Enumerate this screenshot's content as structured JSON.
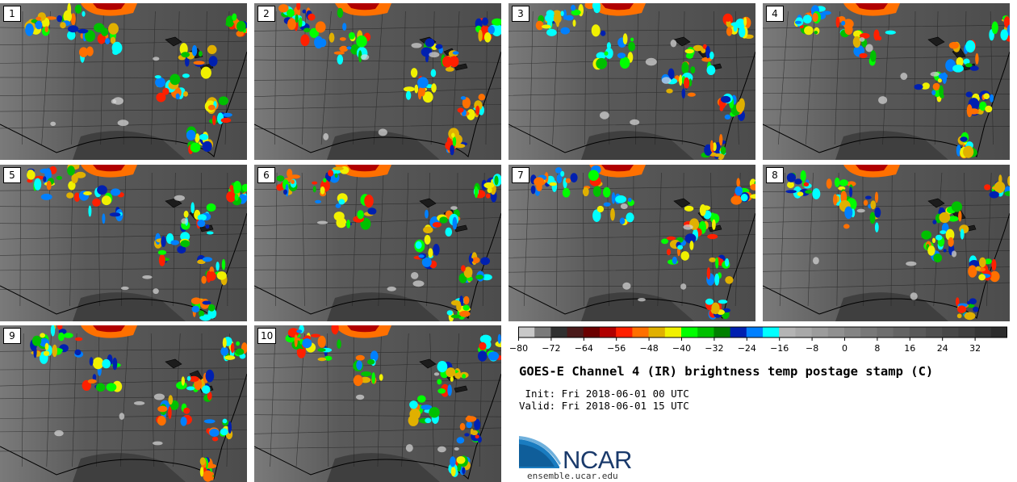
{
  "panels": [
    {
      "label": "1"
    },
    {
      "label": "2"
    },
    {
      "label": "3"
    },
    {
      "label": "4"
    },
    {
      "label": "5"
    },
    {
      "label": "6"
    },
    {
      "label": "7"
    },
    {
      "label": "8"
    },
    {
      "label": "9"
    },
    {
      "label": "10"
    }
  ],
  "colorbar": {
    "ticks": [
      "−80",
      "−72",
      "−64",
      "−56",
      "−48",
      "−40",
      "−32",
      "−24",
      "−16",
      "−8",
      "0",
      "8",
      "16",
      "24",
      "32"
    ],
    "range": [
      -80,
      40
    ],
    "colors": [
      "#c8c8c8",
      "#7a7a7a",
      "#303030",
      "#4a1a1a",
      "#6b0000",
      "#b00000",
      "#ff2000",
      "#ff7000",
      "#e0b000",
      "#f0f000",
      "#00ff00",
      "#00c000",
      "#008000",
      "#0020b0",
      "#0080ff",
      "#00ffff",
      "#b4b4b4",
      "#a8a8a8",
      "#9c9c9c",
      "#909090",
      "#848484",
      "#787878",
      "#6e6e6e",
      "#646464",
      "#5a5a5a",
      "#505050",
      "#484848",
      "#404040",
      "#363636",
      "#2c2c2c"
    ]
  },
  "title": "GOES-E Channel 4 (IR) brightness temp postage stamp (C)",
  "init": " Init: Fri 2018-06-01 00 UTC",
  "valid": "Valid: Fri 2018-06-01 15 UTC",
  "logo": {
    "text": "NCAR",
    "site": "ensemble.ucar.edu"
  }
}
